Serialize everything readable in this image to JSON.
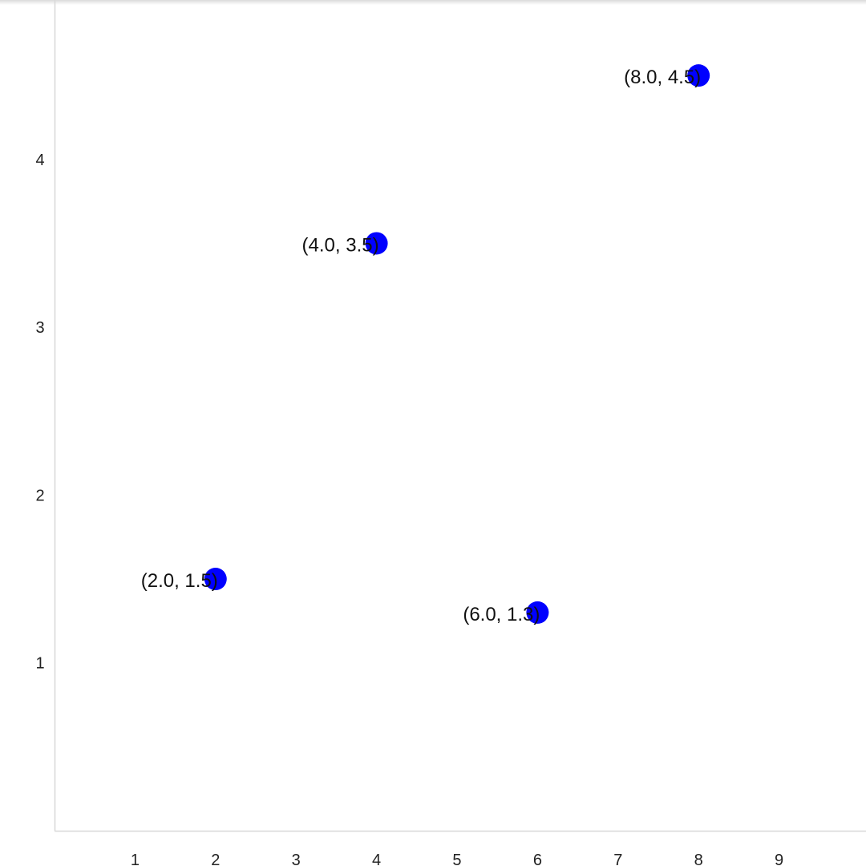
{
  "chart_data": {
    "type": "scatter",
    "title": "",
    "xlabel": "",
    "ylabel": "",
    "xlim": [
      0,
      10.08
    ],
    "ylim": [
      0,
      4.95
    ],
    "x_ticks": [
      1,
      2,
      3,
      4,
      5,
      6,
      7,
      8,
      9
    ],
    "y_ticks": [
      1,
      2,
      3,
      4
    ],
    "grid": false,
    "legend": "none",
    "series": [
      {
        "marker_color": "#0000ff",
        "points": [
          {
            "x": 2.0,
            "y": 1.5,
            "label": "(2.0, 1.5)"
          },
          {
            "x": 4.0,
            "y": 3.5,
            "label": "(4.0, 3.5)"
          },
          {
            "x": 6.0,
            "y": 1.3,
            "label": "(6.0, 1.3)"
          },
          {
            "x": 8.0,
            "y": 4.5,
            "label": "(8.0, 4.5)"
          }
        ]
      }
    ]
  }
}
